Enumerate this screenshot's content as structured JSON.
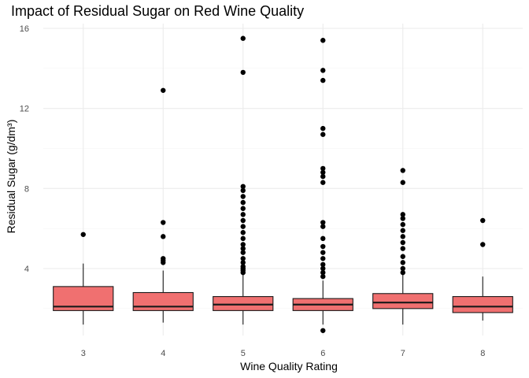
{
  "chart_data": {
    "type": "boxplot",
    "title": "Impact of Residual Sugar on Red Wine Quality",
    "xlabel": "Wine Quality Rating",
    "ylabel": "Residual Sugar (g/dm³)",
    "ylim": [
      0.6,
      16.2
    ],
    "yticks": [
      4,
      8,
      12,
      16
    ],
    "ytick_labels": [
      "4",
      "8",
      "12",
      "16"
    ],
    "yminor": [
      2,
      6,
      10,
      14
    ],
    "grid": true,
    "legend": "none",
    "fill_color": "#F07070",
    "categories": [
      "3",
      "4",
      "5",
      "6",
      "7",
      "8"
    ],
    "boxes": [
      {
        "category": "3",
        "whisker_low": 1.2,
        "q1": 1.9,
        "median": 2.1,
        "q3": 3.1,
        "whisker_high": 4.25,
        "outliers": [
          5.7
        ]
      },
      {
        "category": "4",
        "whisker_low": 1.3,
        "q1": 1.9,
        "median": 2.1,
        "q3": 2.8,
        "whisker_high": 3.9,
        "outliers": [
          4.3,
          4.4,
          4.5,
          5.6,
          6.3,
          12.9
        ]
      },
      {
        "category": "5",
        "whisker_low": 1.2,
        "q1": 1.9,
        "median": 2.2,
        "q3": 2.6,
        "whisker_high": 3.7,
        "outliers": [
          3.8,
          3.9,
          4.0,
          4.1,
          4.3,
          4.5,
          4.8,
          5.0,
          5.2,
          5.5,
          5.8,
          6.1,
          6.4,
          6.7,
          7.0,
          7.3,
          7.6,
          7.9,
          8.1,
          13.8,
          15.5
        ]
      },
      {
        "category": "6",
        "whisker_low": 1.2,
        "q1": 1.9,
        "median": 2.2,
        "q3": 2.5,
        "whisker_high": 3.4,
        "outliers": [
          0.9,
          3.6,
          3.8,
          4.0,
          4.2,
          4.5,
          4.8,
          5.1,
          5.5,
          6.1,
          6.3,
          8.3,
          8.6,
          8.8,
          9.0,
          10.7,
          11.0,
          13.4,
          13.9,
          15.4
        ]
      },
      {
        "category": "7",
        "whisker_low": 1.2,
        "q1": 2.0,
        "median": 2.3,
        "q3": 2.75,
        "whisker_high": 3.7,
        "outliers": [
          3.8,
          4.0,
          4.3,
          4.6,
          5.0,
          5.3,
          5.6,
          5.9,
          6.2,
          6.5,
          6.7,
          8.3,
          8.9
        ]
      },
      {
        "category": "8",
        "whisker_low": 1.4,
        "q1": 1.8,
        "median": 2.1,
        "q3": 2.6,
        "whisker_high": 3.6,
        "outliers": [
          5.2,
          6.4
        ]
      }
    ]
  }
}
